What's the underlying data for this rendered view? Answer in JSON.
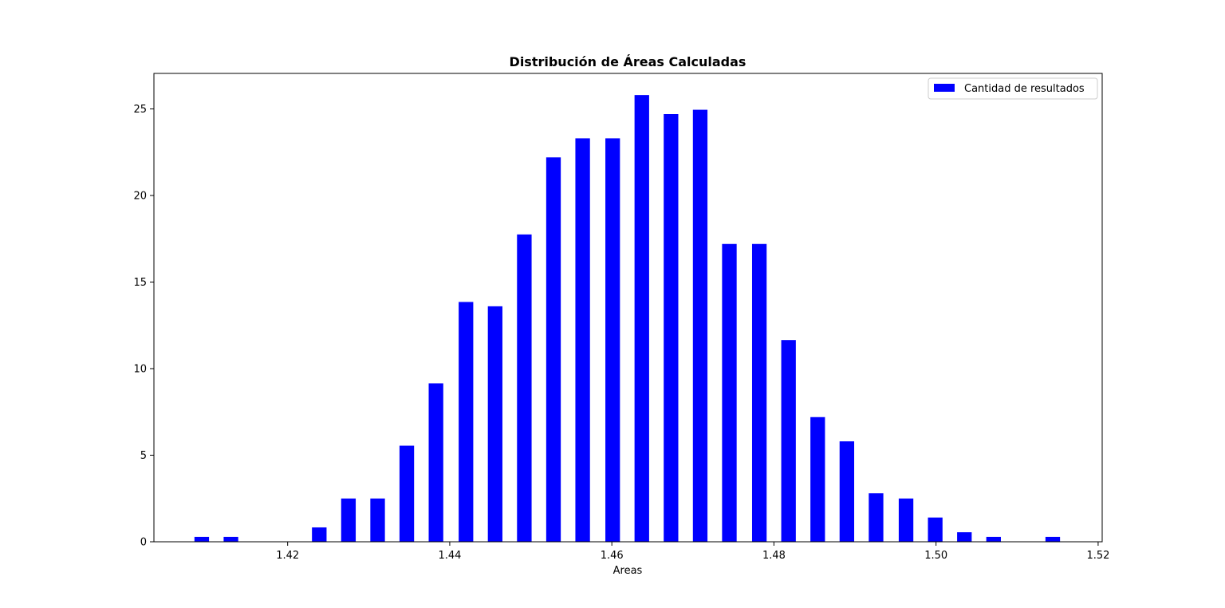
{
  "chart_data": {
    "type": "bar",
    "title": "Distribución de Áreas Calculadas",
    "xlabel": "Areas",
    "ylabel": "",
    "xlim": [
      1.4035,
      1.5205
    ],
    "ylim": [
      0,
      27.05
    ],
    "x_ticks": [
      1.42,
      1.44,
      1.46,
      1.48,
      1.5,
      1.52
    ],
    "x_tick_labels": [
      "1.42",
      "1.44",
      "1.46",
      "1.48",
      "1.50",
      "1.52"
    ],
    "y_ticks": [
      0,
      5,
      10,
      15,
      20,
      25
    ],
    "y_tick_labels": [
      "0",
      "5",
      "10",
      "15",
      "20",
      "25"
    ],
    "bar_width": 0.0018,
    "legend_position": "top-right",
    "grid": false,
    "series": [
      {
        "name": "Cantidad de resultados",
        "color": "#0000ff",
        "x": [
          1.4094,
          1.413,
          1.4166,
          1.4202,
          1.4239,
          1.4275,
          1.4311,
          1.4347,
          1.4383,
          1.442,
          1.4456,
          1.4492,
          1.4528,
          1.4564,
          1.4601,
          1.4637,
          1.4673,
          1.4709,
          1.4745,
          1.4782,
          1.4818,
          1.4854,
          1.489,
          1.4926,
          1.4963,
          1.4999,
          1.5035,
          1.5071,
          1.5107,
          1.5144
        ],
        "values": [
          0.28,
          0.28,
          0,
          0,
          0.83,
          2.5,
          2.5,
          5.55,
          9.15,
          13.85,
          13.6,
          17.75,
          22.2,
          23.3,
          23.3,
          25.8,
          24.7,
          24.95,
          17.2,
          17.2,
          11.65,
          7.2,
          5.8,
          2.8,
          2.5,
          1.4,
          0.55,
          0.28,
          0,
          0.28
        ]
      }
    ]
  }
}
